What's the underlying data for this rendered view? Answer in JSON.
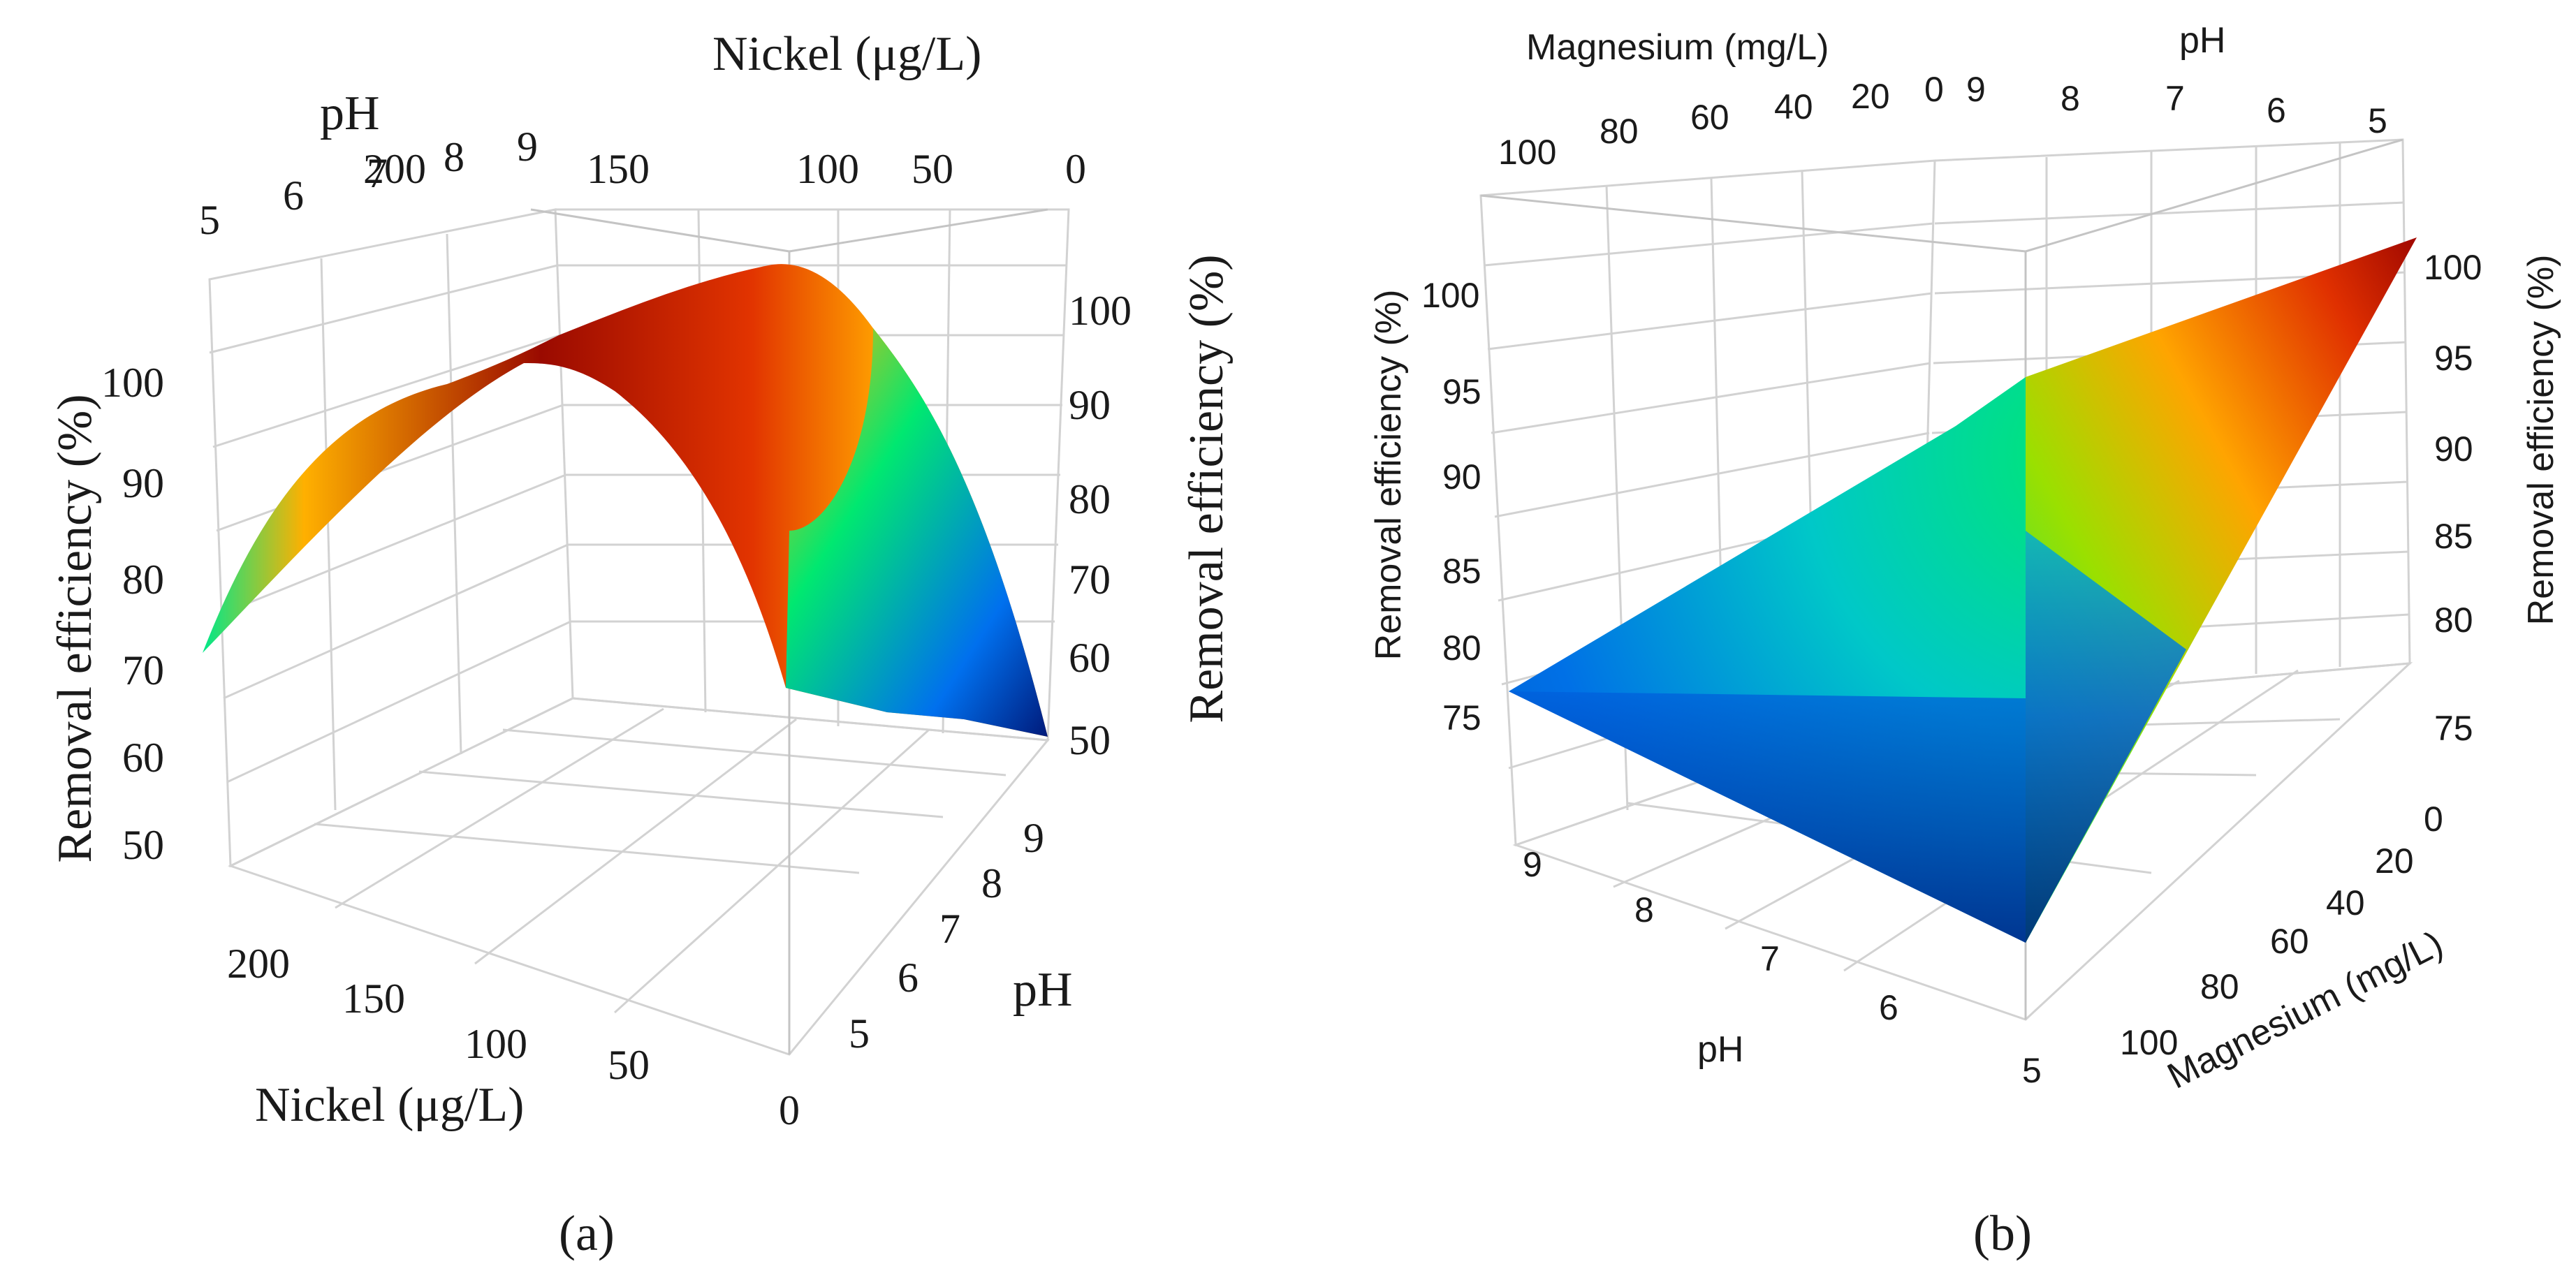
{
  "chart_data": [
    {
      "type": "surface3d",
      "panel": "a",
      "panel_label": "(a)",
      "x_axis": {
        "label": "Nickel (μg/L)",
        "ticks": [
          "0",
          "50",
          "100",
          "150",
          "200"
        ],
        "range": [
          0,
          225
        ]
      },
      "y_axis": {
        "label": "pH",
        "ticks": [
          "5",
          "6",
          "7",
          "8",
          "9"
        ],
        "range": [
          5,
          9
        ]
      },
      "z_axis": {
        "label": "Removal efficiency (%)",
        "ticks_left": [
          "50",
          "60",
          "70",
          "80",
          "90",
          "100"
        ],
        "ticks_right": [
          "50",
          "60",
          "70",
          "80",
          "90",
          "100"
        ],
        "range": [
          45,
          108
        ]
      },
      "colormap": [
        "#001a7a",
        "#0078f0",
        "#00ee6a",
        "#ffa400",
        "#d82800",
        "#8e0000"
      ],
      "surface_points": [
        {
          "nickel": 0,
          "pH": 9,
          "efficiency": 50
        },
        {
          "nickel": 0,
          "pH": 5,
          "efficiency": 78
        },
        {
          "nickel": 50,
          "pH": 7,
          "efficiency": 60
        },
        {
          "nickel": 100,
          "pH": 5,
          "efficiency": 103
        },
        {
          "nickel": 150,
          "pH": 7,
          "efficiency": 104
        },
        {
          "nickel": 225,
          "pH": 9,
          "efficiency": 72
        }
      ]
    },
    {
      "type": "surface3d",
      "panel": "b",
      "panel_label": "(b)",
      "x_axis": {
        "label": "Magnesium (mg/L)",
        "ticks": [
          "0",
          "20",
          "40",
          "60",
          "80",
          "100"
        ],
        "range": [
          0,
          100
        ]
      },
      "y_axis": {
        "label": "pH",
        "ticks": [
          "5",
          "6",
          "7",
          "8",
          "9"
        ],
        "range": [
          5,
          9
        ]
      },
      "z_axis": {
        "label": "Removal efficiency (%)",
        "ticks_left": [
          "75",
          "80",
          "85",
          "90",
          "95",
          "100"
        ],
        "ticks_right": [
          "75",
          "80",
          "85",
          "90",
          "95",
          "100"
        ],
        "range": [
          72,
          103
        ]
      },
      "colormap": [
        "#001a7a",
        "#0078f0",
        "#00ee6a",
        "#ffa400",
        "#d82800",
        "#8e0000"
      ],
      "surface_points": [
        {
          "magnesium": 0,
          "pH": 5,
          "efficiency": 101
        },
        {
          "magnesium": 0,
          "pH": 9,
          "efficiency": 95
        },
        {
          "magnesium": 100,
          "pH": 9,
          "efficiency": 80
        },
        {
          "magnesium": 100,
          "pH": 5,
          "efficiency": 74
        }
      ]
    }
  ]
}
